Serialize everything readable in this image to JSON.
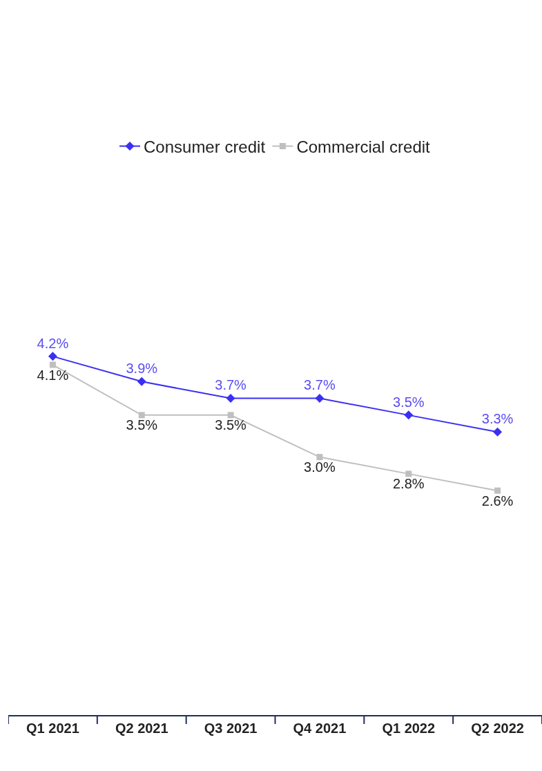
{
  "chart_data": {
    "type": "line",
    "categories": [
      "Q1 2021",
      "Q2 2021",
      "Q3 2021",
      "Q4 2021",
      "Q1 2022",
      "Q2 2022"
    ],
    "series": [
      {
        "name": "Consumer credit",
        "color": "#3a2ff2",
        "marker": "diamond",
        "values": [
          4.2,
          3.9,
          3.7,
          3.7,
          3.5,
          3.3
        ],
        "value_labels": [
          "4.2%",
          "3.9%",
          "3.7%",
          "3.7%",
          "3.5%",
          "3.3%"
        ]
      },
      {
        "name": "Commercial credit",
        "color": "#bfbfbf",
        "marker": "square",
        "values": [
          4.1,
          3.5,
          3.5,
          3.0,
          2.8,
          2.6
        ],
        "value_labels": [
          "4.1%",
          "3.5%",
          "3.5%",
          "3.0%",
          "2.8%",
          "2.6%"
        ]
      }
    ],
    "legend": "top",
    "tick_labels": "x"
  }
}
